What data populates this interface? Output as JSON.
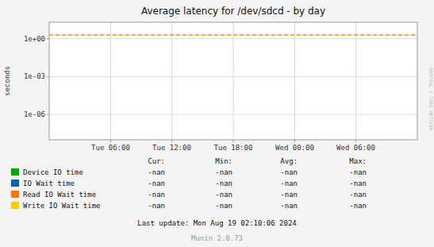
{
  "chart_data": {
    "type": "line",
    "title": "Average latency for /dev/sdcd - by day",
    "y_label": "seconds",
    "log": "y",
    "grid": true,
    "legend": "bottom",
    "xlim": [
      0,
      1
    ],
    "xticks": [
      {
        "value": 0.167,
        "label": "Tue 06:00"
      },
      {
        "value": 0.333,
        "label": "Tue 12:00"
      },
      {
        "value": 0.5,
        "label": "Tue 18:00"
      },
      {
        "value": 0.667,
        "label": "Wed 00:00"
      },
      {
        "value": 0.833,
        "label": "Wed 06:00"
      }
    ],
    "ylim": [
      1e-08,
      19.952623149688797
    ],
    "yticks": [
      {
        "value": 1e-06,
        "label": "1e-06"
      },
      {
        "value": 0.001,
        "label": "1e-03"
      },
      {
        "value": 1,
        "label": "1e+00"
      }
    ],
    "hlines": [
      {
        "y": 2.0,
        "color": "#ff8800",
        "line_style": "dashed"
      }
    ],
    "series": [
      {
        "name": "Device IO time",
        "color": "#00aa00",
        "values": []
      },
      {
        "name": "IO Wait time",
        "color": "#0066b3",
        "values": []
      },
      {
        "name": "Read IO Wait time",
        "color": "#ff7700",
        "values": []
      },
      {
        "name": "Write IO Wait time",
        "color": "#ffcc00",
        "values": []
      }
    ],
    "table": {
      "headers": [
        "Cur:",
        "Min:",
        "Avg:",
        "Max:"
      ],
      "rows": [
        [
          "-nan",
          "-nan",
          "-nan",
          "-nan"
        ],
        [
          "-nan",
          "-nan",
          "-nan",
          "-nan"
        ],
        [
          "-nan",
          "-nan",
          "-nan",
          "-nan"
        ],
        [
          "-nan",
          "-nan",
          "-nan",
          "-nan"
        ]
      ]
    },
    "footer": "Last update: Mon Aug 19 02:10:06 2024",
    "credit": "Munin 2.0.73",
    "watermark": "RRDTOOL / TOBI OETIKER"
  }
}
